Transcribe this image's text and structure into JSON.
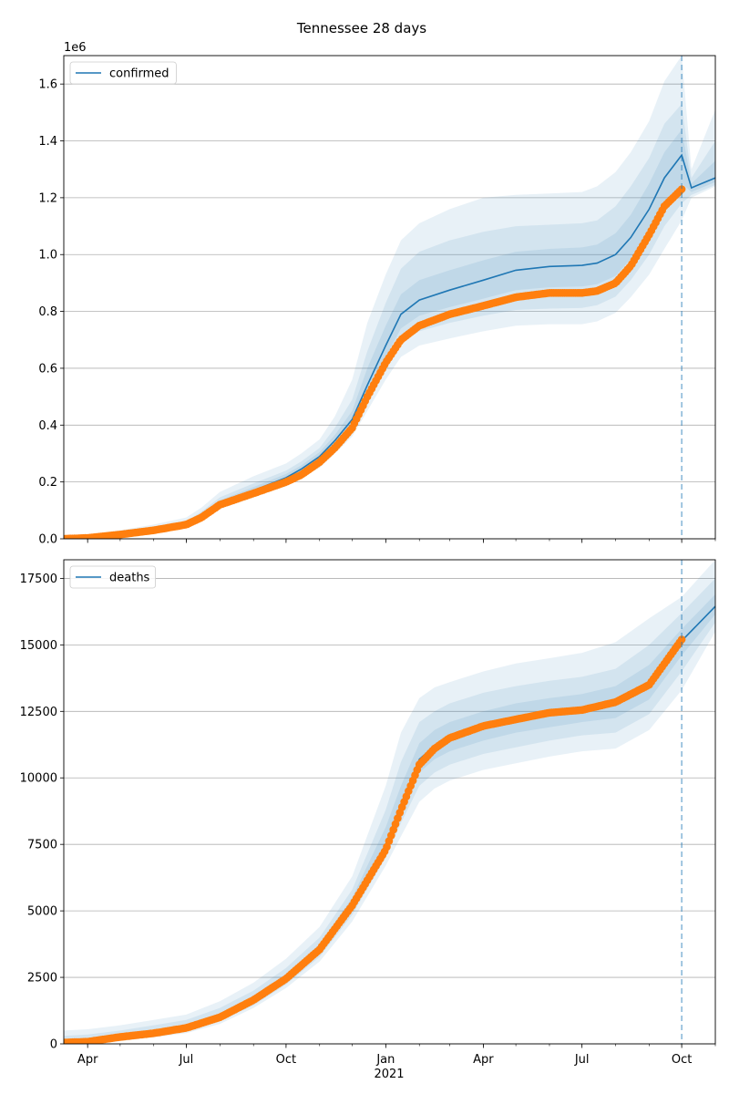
{
  "figure": {
    "title": "Tennessee 28 days",
    "year_label": "2021"
  },
  "chart_data": [
    {
      "type": "line",
      "legend": "confirmed",
      "legend_position": "top-left",
      "scale_label": "1e6",
      "grid": "horizontal",
      "xlim": [
        "2020-03-10",
        "2021-11-01"
      ],
      "ylim": [
        0,
        1.7
      ],
      "x_ticks": [
        {
          "date": "2020-04-01",
          "label": "Apr"
        },
        {
          "date": "2020-07-01",
          "label": "Jul"
        },
        {
          "date": "2020-10-01",
          "label": "Oct"
        },
        {
          "date": "2021-01-01",
          "label": "Jan"
        },
        {
          "date": "2021-04-01",
          "label": "Apr"
        },
        {
          "date": "2021-07-01",
          "label": "Jul"
        },
        {
          "date": "2021-10-01",
          "label": "Oct"
        }
      ],
      "y_ticks": [
        {
          "value": 0.0,
          "label": "0.0"
        },
        {
          "value": 0.2,
          "label": "0.2"
        },
        {
          "value": 0.4,
          "label": "0.4"
        },
        {
          "value": 0.6,
          "label": "0.6"
        },
        {
          "value": 0.8,
          "label": "0.8"
        },
        {
          "value": 1.0,
          "label": "1.0"
        },
        {
          "value": 1.2,
          "label": "1.2"
        },
        {
          "value": 1.4,
          "label": "1.4"
        },
        {
          "value": 1.6,
          "label": "1.6"
        }
      ],
      "forecast_start": "2021-10-01",
      "model_x": [
        "2020-03-10",
        "2020-04-01",
        "2020-05-01",
        "2020-06-01",
        "2020-07-01",
        "2020-07-15",
        "2020-08-01",
        "2020-09-01",
        "2020-10-01",
        "2020-10-15",
        "2020-11-01",
        "2020-11-15",
        "2020-12-01",
        "2020-12-15",
        "2021-01-01",
        "2021-01-15",
        "2021-02-01",
        "2021-03-01",
        "2021-04-01",
        "2021-05-01",
        "2021-06-01",
        "2021-07-01",
        "2021-07-15",
        "2021-08-01",
        "2021-08-15",
        "2021-09-01",
        "2021-09-15",
        "2021-10-01",
        "2021-10-10",
        "2021-11-01"
      ],
      "model_median": [
        0.0,
        0.003,
        0.015,
        0.03,
        0.05,
        0.08,
        0.125,
        0.17,
        0.215,
        0.245,
        0.29,
        0.345,
        0.42,
        0.54,
        0.68,
        0.79,
        0.84,
        0.875,
        0.91,
        0.945,
        0.958,
        0.962,
        0.97,
        1.0,
        1.06,
        1.16,
        1.27,
        1.35,
        1.235,
        1.27
      ],
      "bands": [
        {
          "lower": [
            0.0,
            0.0,
            0.008,
            0.022,
            0.04,
            0.065,
            0.105,
            0.145,
            0.185,
            0.215,
            0.25,
            0.3,
            0.36,
            0.45,
            0.56,
            0.64,
            0.68,
            0.705,
            0.73,
            0.75,
            0.755,
            0.755,
            0.765,
            0.795,
            0.85,
            0.93,
            1.02,
            1.12,
            1.2,
            1.24
          ],
          "upper": [
            0.01,
            0.015,
            0.03,
            0.05,
            0.075,
            0.11,
            0.165,
            0.22,
            0.265,
            0.3,
            0.35,
            0.43,
            0.56,
            0.76,
            0.93,
            1.05,
            1.11,
            1.16,
            1.2,
            1.21,
            1.215,
            1.22,
            1.24,
            1.29,
            1.36,
            1.47,
            1.61,
            1.7,
            1.3,
            1.51
          ]
        },
        {
          "lower": [
            0.0,
            0.001,
            0.01,
            0.025,
            0.044,
            0.07,
            0.11,
            0.152,
            0.195,
            0.225,
            0.262,
            0.315,
            0.38,
            0.48,
            0.6,
            0.69,
            0.73,
            0.76,
            0.785,
            0.805,
            0.81,
            0.812,
            0.822,
            0.852,
            0.91,
            1.0,
            1.1,
            1.18,
            1.21,
            1.245
          ],
          "upper": [
            0.006,
            0.009,
            0.022,
            0.04,
            0.062,
            0.096,
            0.146,
            0.195,
            0.24,
            0.272,
            0.32,
            0.39,
            0.49,
            0.66,
            0.83,
            0.95,
            1.01,
            1.05,
            1.08,
            1.1,
            1.105,
            1.11,
            1.12,
            1.17,
            1.24,
            1.34,
            1.46,
            1.53,
            1.27,
            1.4
          ]
        },
        {
          "lower": [
            0.0,
            0.002,
            0.012,
            0.027,
            0.047,
            0.075,
            0.117,
            0.16,
            0.205,
            0.235,
            0.275,
            0.33,
            0.4,
            0.51,
            0.64,
            0.74,
            0.785,
            0.815,
            0.845,
            0.875,
            0.885,
            0.888,
            0.896,
            0.925,
            0.985,
            1.08,
            1.18,
            1.25,
            1.22,
            1.255
          ],
          "upper": [
            0.003,
            0.005,
            0.018,
            0.034,
            0.055,
            0.087,
            0.135,
            0.182,
            0.228,
            0.258,
            0.305,
            0.365,
            0.45,
            0.6,
            0.75,
            0.86,
            0.91,
            0.945,
            0.98,
            1.01,
            1.02,
            1.025,
            1.035,
            1.075,
            1.14,
            1.25,
            1.36,
            1.44,
            1.25,
            1.33
          ]
        }
      ],
      "observed_x": [
        "2020-03-10",
        "2020-04-01",
        "2020-05-01",
        "2020-06-01",
        "2020-07-01",
        "2020-07-15",
        "2020-08-01",
        "2020-09-01",
        "2020-10-01",
        "2020-10-15",
        "2020-11-01",
        "2020-11-15",
        "2020-12-01",
        "2020-12-15",
        "2021-01-01",
        "2021-01-15",
        "2021-02-01",
        "2021-03-01",
        "2021-04-01",
        "2021-05-01",
        "2021-06-01",
        "2021-07-01",
        "2021-07-15",
        "2021-08-01",
        "2021-08-15",
        "2021-09-01",
        "2021-09-15",
        "2021-10-01"
      ],
      "observed": [
        0.0,
        0.003,
        0.015,
        0.03,
        0.05,
        0.075,
        0.12,
        0.16,
        0.2,
        0.225,
        0.27,
        0.32,
        0.39,
        0.5,
        0.62,
        0.7,
        0.75,
        0.79,
        0.82,
        0.85,
        0.865,
        0.865,
        0.872,
        0.9,
        0.96,
        1.07,
        1.17,
        1.23
      ]
    },
    {
      "type": "line",
      "legend": "deaths",
      "legend_position": "top-left",
      "grid": "horizontal",
      "xlim": [
        "2020-03-10",
        "2021-11-01"
      ],
      "ylim": [
        0,
        18200
      ],
      "x_ticks": [
        {
          "date": "2020-04-01",
          "label": "Apr"
        },
        {
          "date": "2020-07-01",
          "label": "Jul"
        },
        {
          "date": "2020-10-01",
          "label": "Oct"
        },
        {
          "date": "2021-01-01",
          "label": "Jan"
        },
        {
          "date": "2021-04-01",
          "label": "Apr"
        },
        {
          "date": "2021-07-01",
          "label": "Jul"
        },
        {
          "date": "2021-10-01",
          "label": "Oct"
        }
      ],
      "y_ticks": [
        {
          "value": 0,
          "label": "0"
        },
        {
          "value": 2500,
          "label": "2500"
        },
        {
          "value": 5000,
          "label": "5000"
        },
        {
          "value": 7500,
          "label": "7500"
        },
        {
          "value": 10000,
          "label": "10000"
        },
        {
          "value": 12500,
          "label": "12500"
        },
        {
          "value": 15000,
          "label": "15000"
        },
        {
          "value": 17500,
          "label": "17500"
        }
      ],
      "forecast_start": "2021-10-01",
      "model_x": [
        "2020-03-10",
        "2020-04-01",
        "2020-05-01",
        "2020-06-01",
        "2020-07-01",
        "2020-08-01",
        "2020-09-01",
        "2020-10-01",
        "2020-11-01",
        "2020-12-01",
        "2021-01-01",
        "2021-01-15",
        "2021-02-01",
        "2021-02-15",
        "2021-03-01",
        "2021-04-01",
        "2021-05-01",
        "2021-06-01",
        "2021-07-01",
        "2021-08-01",
        "2021-09-01",
        "2021-10-01",
        "2021-11-01"
      ],
      "model_median": [
        60,
        90,
        250,
        400,
        600,
        1000,
        1600,
        2400,
        3500,
        5200,
        7500,
        9000,
        10700,
        11200,
        11500,
        11900,
        12200,
        12400,
        12550,
        12800,
        13500,
        15150,
        16450
      ],
      "bands": [
        {
          "lower": [
            0,
            0,
            100,
            250,
            400,
            750,
            1350,
            2100,
            3100,
            4600,
            6700,
            7800,
            9100,
            9600,
            9900,
            10300,
            10550,
            10800,
            11000,
            11100,
            11800,
            13300,
            15500
          ],
          "upper": [
            500,
            550,
            700,
            900,
            1100,
            1600,
            2300,
            3200,
            4400,
            6300,
            9700,
            11700,
            13000,
            13400,
            13600,
            14000,
            14300,
            14500,
            14700,
            15100,
            16000,
            16800,
            18200
          ]
        },
        {
          "lower": [
            10,
            30,
            150,
            300,
            480,
            850,
            1450,
            2230,
            3270,
            4850,
            7020,
            8300,
            9700,
            10200,
            10500,
            10900,
            11150,
            11400,
            11600,
            11700,
            12400,
            14000,
            15850
          ],
          "upper": [
            300,
            350,
            500,
            700,
            900,
            1350,
            2000,
            2850,
            4000,
            5800,
            8800,
            10600,
            12100,
            12500,
            12800,
            13200,
            13450,
            13650,
            13800,
            14100,
            15000,
            16200,
            17500
          ]
        },
        {
          "lower": [
            30,
            60,
            200,
            350,
            540,
            920,
            1520,
            2320,
            3380,
            5020,
            7250,
            8650,
            10200,
            10700,
            11000,
            11400,
            11700,
            11900,
            12100,
            12250,
            12950,
            14600,
            16150
          ],
          "upper": [
            150,
            180,
            350,
            520,
            720,
            1150,
            1780,
            2600,
            3750,
            5500,
            8150,
            9700,
            11300,
            11800,
            12100,
            12500,
            12800,
            13000,
            13150,
            13450,
            14250,
            15600,
            16900
          ]
        }
      ],
      "observed_x": [
        "2020-03-10",
        "2020-04-01",
        "2020-05-01",
        "2020-06-01",
        "2020-07-01",
        "2020-08-01",
        "2020-09-01",
        "2020-10-01",
        "2020-11-01",
        "2020-12-01",
        "2021-01-01",
        "2021-01-15",
        "2021-02-01",
        "2021-02-15",
        "2021-03-01",
        "2021-04-01",
        "2021-05-01",
        "2021-06-01",
        "2021-07-01",
        "2021-08-01",
        "2021-09-01",
        "2021-10-01"
      ],
      "observed": [
        50,
        80,
        260,
        400,
        600,
        1000,
        1650,
        2450,
        3550,
        5200,
        7300,
        8800,
        10500,
        11100,
        11500,
        11950,
        12200,
        12450,
        12550,
        12850,
        13500,
        15200
      ]
    }
  ]
}
